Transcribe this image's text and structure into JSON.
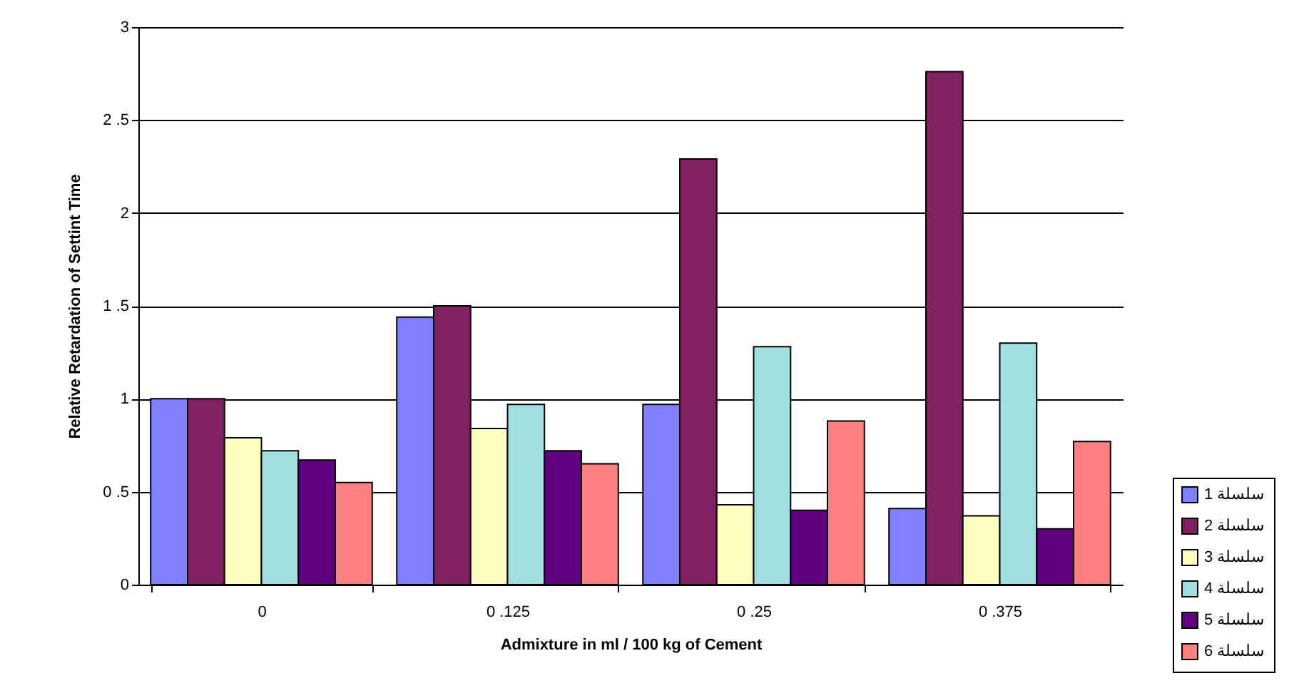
{
  "chart_data": {
    "type": "bar",
    "xlabel": "Admixture in ml / 100 kg of Cement",
    "ylabel": "Relative Retardation of Settint Time",
    "categories": [
      "0",
      "0 .125",
      "0 .25",
      "0 .375"
    ],
    "series": [
      {
        "name": "سلسلة 1",
        "color": "#8080ff",
        "values": [
          1.0,
          1.44,
          0.97,
          0.41
        ]
      },
      {
        "name": "سلسلة 2",
        "color": "#802060",
        "values": [
          1.0,
          1.5,
          2.29,
          2.76
        ]
      },
      {
        "name": "سلسلة 3",
        "color": "#ffffc0",
        "values": [
          0.79,
          0.84,
          0.43,
          0.37
        ]
      },
      {
        "name": "سلسلة 4",
        "color": "#a0e0e0",
        "values": [
          0.72,
          0.97,
          1.28,
          1.3
        ]
      },
      {
        "name": "سلسلة 5",
        "color": "#600080",
        "values": [
          0.67,
          0.72,
          0.4,
          0.3
        ]
      },
      {
        "name": "سلسلة 6",
        "color": "#ff8080",
        "values": [
          0.55,
          0.65,
          0.88,
          0.77
        ]
      }
    ],
    "ylim": [
      0,
      3
    ],
    "yticks": [
      0,
      {
        "value": 0.5,
        "label": "0 .5"
      },
      1,
      {
        "value": 1.5,
        "label": "1 .5"
      },
      2,
      {
        "value": 2.5,
        "label": "2 .5"
      },
      3
    ],
    "grid": "y",
    "legend": "bottom right"
  }
}
